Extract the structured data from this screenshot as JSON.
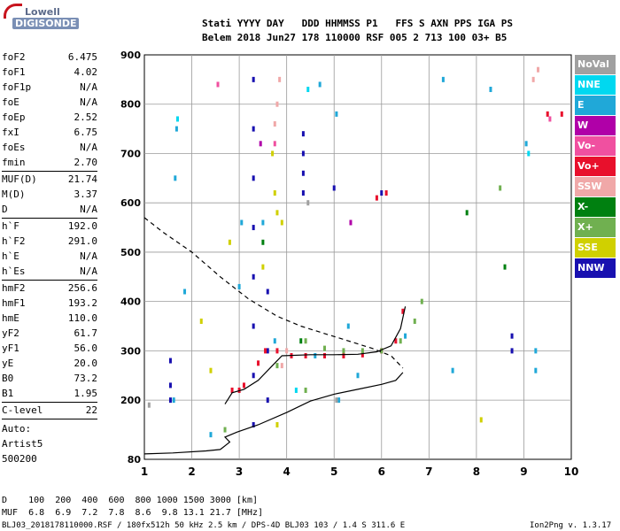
{
  "logo": {
    "line1": "Lowell",
    "line2": "DIGISONDE"
  },
  "header": {
    "line1": "Stati YYYY DAY   DDD HHMMSS P1   FFS S AXN PPS IGA PS",
    "line2": "Belem 2018 Jun27 178 110000 RSF 005 2 713 100 03+ B5"
  },
  "parameters": [
    {
      "name": "foF2",
      "value": "6.475"
    },
    {
      "name": "foF1",
      "value": "4.02"
    },
    {
      "name": "foF1p",
      "value": "N/A"
    },
    {
      "name": "foE",
      "value": "N/A"
    },
    {
      "name": "foEp",
      "value": "2.52"
    },
    {
      "name": "fxI",
      "value": "6.75"
    },
    {
      "name": "foEs",
      "value": "N/A"
    },
    {
      "name": "fmin",
      "value": "2.70"
    },
    {
      "name": "MUF(D)",
      "value": "21.74"
    },
    {
      "name": "M(D)",
      "value": "3.37"
    },
    {
      "name": "D",
      "value": "N/A"
    },
    {
      "name": "h`F",
      "value": "192.0"
    },
    {
      "name": "h`F2",
      "value": "291.0"
    },
    {
      "name": "h`E",
      "value": "N/A"
    },
    {
      "name": "h`Es",
      "value": "N/A"
    },
    {
      "name": "hmF2",
      "value": "256.6"
    },
    {
      "name": "hmF1",
      "value": "193.2"
    },
    {
      "name": "hmE",
      "value": "110.0"
    },
    {
      "name": "yF2",
      "value": "61.7"
    },
    {
      "name": "yF1",
      "value": "56.0"
    },
    {
      "name": "yE",
      "value": "20.0"
    },
    {
      "name": "B0",
      "value": "73.2"
    },
    {
      "name": "B1",
      "value": "1.95"
    },
    {
      "name": "C-level",
      "value": "22"
    }
  ],
  "autoscaling": {
    "line1": "Auto:",
    "line2": "Artist5",
    "line3": "500200"
  },
  "legend": [
    {
      "label": "NoVal",
      "color": "#a0a0a0"
    },
    {
      "label": "NNE",
      "color": "#00d8f0"
    },
    {
      "label": "E",
      "color": "#20a8d8"
    },
    {
      "label": "W",
      "color": "#b000a8"
    },
    {
      "label": "Vo-",
      "color": "#f050a0"
    },
    {
      "label": "Vo+",
      "color": "#e8102c"
    },
    {
      "label": "SSW",
      "color": "#f0a8a8"
    },
    {
      "label": "X-",
      "color": "#008010"
    },
    {
      "label": "X+",
      "color": "#70b050"
    },
    {
      "label": "SSE",
      "color": "#d0d000"
    },
    {
      "label": "NNW",
      "color": "#1810b0"
    }
  ],
  "muf_table": {
    "d_row": "D    100  200  400  600  800 1000 1500 3000 [km]",
    "muf_row": "MUF  6.8  6.9  7.2  7.8  8.6  9.8 13.1 21.7 [MHz]"
  },
  "footer": {
    "left": "BLJ03_2018178110000.RSF / 180fx512h 50 kHz 2.5 km / DPS-4D BLJ03 103 / 1.4 S 311.6 E",
    "right": "Ion2Png v. 1.3.17"
  },
  "chart_data": {
    "type": "scatter",
    "title": "",
    "xlabel": "",
    "ylabel": "",
    "xlim": [
      1,
      10
    ],
    "ylim": [
      80,
      900
    ],
    "xticks": [
      1,
      2,
      3,
      4,
      5,
      6,
      7,
      8,
      9,
      10
    ],
    "yticks": [
      80,
      200,
      300,
      400,
      500,
      600,
      700,
      800,
      900
    ],
    "grid": true,
    "legend_position": "right",
    "series": [
      {
        "color": "#1810b0",
        "points": [
          [
            1.55,
            200
          ],
          [
            1.55,
            230
          ],
          [
            1.55,
            280
          ],
          [
            3.3,
            150
          ],
          [
            3.3,
            250
          ],
          [
            3.3,
            350
          ],
          [
            3.3,
            450
          ],
          [
            3.3,
            550
          ],
          [
            3.3,
            650
          ],
          [
            3.3,
            750
          ],
          [
            3.3,
            850
          ],
          [
            3.6,
            200
          ],
          [
            3.6,
            300
          ],
          [
            3.6,
            420
          ],
          [
            4.35,
            620
          ],
          [
            4.35,
            660
          ],
          [
            4.35,
            700
          ],
          [
            4.35,
            740
          ],
          [
            5.0,
            630
          ],
          [
            6.0,
            620
          ],
          [
            8.75,
            330
          ],
          [
            8.75,
            300
          ]
        ]
      },
      {
        "color": "#20a8d8",
        "points": [
          [
            1.62,
            200
          ],
          [
            1.65,
            650
          ],
          [
            1.68,
            750
          ],
          [
            1.85,
            420
          ],
          [
            2.4,
            130
          ],
          [
            3.0,
            430
          ],
          [
            3.05,
            560
          ],
          [
            3.5,
            560
          ],
          [
            3.75,
            320
          ],
          [
            4.6,
            290
          ],
          [
            4.7,
            840
          ],
          [
            5.05,
            780
          ],
          [
            5.1,
            200
          ],
          [
            5.3,
            350
          ],
          [
            5.5,
            250
          ],
          [
            6.5,
            330
          ],
          [
            7.3,
            850
          ],
          [
            7.5,
            260
          ],
          [
            8.3,
            830
          ],
          [
            9.05,
            720
          ],
          [
            9.25,
            260
          ],
          [
            9.25,
            300
          ]
        ]
      },
      {
        "color": "#00d8f0",
        "points": [
          [
            1.7,
            770
          ],
          [
            4.45,
            830
          ],
          [
            4.2,
            220
          ],
          [
            9.1,
            700
          ]
        ]
      },
      {
        "color": "#e8102c",
        "points": [
          [
            2.85,
            220
          ],
          [
            3.0,
            220
          ],
          [
            3.1,
            230
          ],
          [
            3.4,
            275
          ],
          [
            3.55,
            300
          ],
          [
            3.8,
            300
          ],
          [
            4.1,
            290
          ],
          [
            4.4,
            290
          ],
          [
            4.8,
            290
          ],
          [
            5.2,
            290
          ],
          [
            5.6,
            292
          ],
          [
            6.0,
            300
          ],
          [
            6.3,
            320
          ],
          [
            6.45,
            380
          ],
          [
            5.9,
            610
          ],
          [
            6.1,
            620
          ],
          [
            9.5,
            780
          ],
          [
            9.8,
            780
          ]
        ]
      },
      {
        "color": "#70b050",
        "points": [
          [
            4.4,
            320
          ],
          [
            4.8,
            305
          ],
          [
            5.2,
            300
          ],
          [
            5.6,
            300
          ],
          [
            6.0,
            300
          ],
          [
            6.4,
            320
          ],
          [
            6.7,
            360
          ],
          [
            6.85,
            400
          ],
          [
            3.8,
            270
          ],
          [
            4.4,
            220
          ],
          [
            2.7,
            140
          ],
          [
            8.5,
            630
          ]
        ]
      },
      {
        "color": "#008010",
        "points": [
          [
            3.5,
            520
          ],
          [
            4.3,
            320
          ],
          [
            7.8,
            580
          ],
          [
            8.6,
            470
          ]
        ]
      },
      {
        "color": "#f0a8a8",
        "points": [
          [
            3.75,
            760
          ],
          [
            3.8,
            800
          ],
          [
            3.85,
            850
          ],
          [
            9.2,
            850
          ],
          [
            9.3,
            870
          ],
          [
            3.9,
            270
          ],
          [
            4.0,
            300
          ]
        ]
      },
      {
        "color": "#f050a0",
        "points": [
          [
            2.55,
            840
          ],
          [
            3.75,
            720
          ],
          [
            9.55,
            770
          ]
        ]
      },
      {
        "color": "#d0d000",
        "points": [
          [
            3.7,
            700
          ],
          [
            3.75,
            620
          ],
          [
            3.8,
            580
          ],
          [
            3.9,
            560
          ],
          [
            2.8,
            520
          ],
          [
            3.5,
            470
          ],
          [
            2.2,
            360
          ],
          [
            2.4,
            260
          ],
          [
            3.8,
            150
          ],
          [
            8.1,
            160
          ]
        ]
      },
      {
        "color": "#b000a8",
        "points": [
          [
            3.45,
            720
          ],
          [
            5.35,
            560
          ]
        ]
      },
      {
        "color": "#a0a0a0",
        "points": [
          [
            1.1,
            190
          ],
          [
            4.45,
            600
          ],
          [
            5.05,
            200
          ]
        ]
      }
    ],
    "curves": [
      {
        "name": "virtual-height-trace",
        "color": "#000000",
        "dash": false,
        "points": [
          [
            2.7,
            192
          ],
          [
            2.85,
            215
          ],
          [
            3.1,
            222
          ],
          [
            3.4,
            240
          ],
          [
            3.7,
            270
          ],
          [
            3.9,
            290
          ],
          [
            4.5,
            292
          ],
          [
            5.0,
            292
          ],
          [
            5.5,
            293
          ],
          [
            5.9,
            298
          ],
          [
            6.2,
            310
          ],
          [
            6.4,
            345
          ],
          [
            6.5,
            390
          ]
        ]
      },
      {
        "name": "true-height-profile",
        "color": "#000000",
        "dash": false,
        "points": [
          [
            1.0,
            91
          ],
          [
            1.6,
            93
          ],
          [
            2.3,
            97
          ],
          [
            2.6,
            100
          ],
          [
            2.8,
            115
          ],
          [
            2.7,
            125
          ],
          [
            2.95,
            135
          ],
          [
            3.4,
            150
          ],
          [
            4.0,
            175
          ],
          [
            4.5,
            198
          ],
          [
            5.0,
            212
          ],
          [
            5.5,
            222
          ],
          [
            6.0,
            232
          ],
          [
            6.3,
            240
          ],
          [
            6.45,
            256
          ]
        ]
      },
      {
        "name": "x-mode-profile",
        "color": "#000000",
        "dash": true,
        "points": [
          [
            1.0,
            570
          ],
          [
            1.4,
            540
          ],
          [
            2.0,
            500
          ],
          [
            2.6,
            450
          ],
          [
            3.2,
            405
          ],
          [
            3.8,
            370
          ],
          [
            4.3,
            350
          ],
          [
            4.8,
            335
          ],
          [
            5.3,
            320
          ],
          [
            5.8,
            305
          ],
          [
            6.2,
            290
          ],
          [
            6.45,
            265
          ]
        ]
      }
    ]
  }
}
